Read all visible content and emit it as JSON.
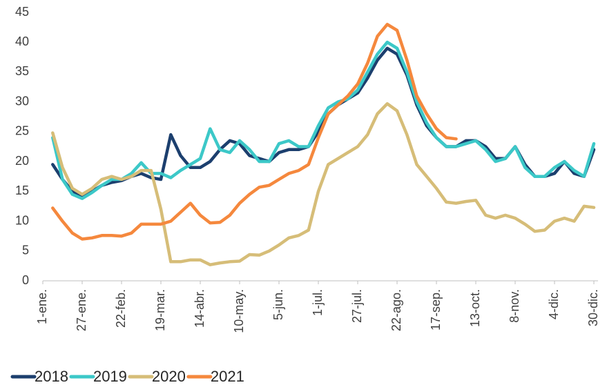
{
  "chart_data": {
    "type": "line",
    "categories": [
      "1-ene.",
      null,
      null,
      null,
      "27-ene.",
      null,
      null,
      null,
      "22-feb.",
      null,
      null,
      null,
      "19-mar.",
      null,
      null,
      null,
      "14-abr.",
      null,
      null,
      null,
      "10-may.",
      null,
      null,
      null,
      "5-jun.",
      null,
      null,
      null,
      "1-jul.",
      null,
      null,
      null,
      "27-jul.",
      null,
      null,
      null,
      "22-ago.",
      null,
      null,
      null,
      "17-sep.",
      null,
      null,
      null,
      "13-oct.",
      null,
      null,
      null,
      "8-nov.",
      null,
      null,
      null,
      "4-dic.",
      null,
      null,
      null,
      "30-dic."
    ],
    "series": [
      {
        "name": "2018",
        "color": "#1c3f6e",
        "values": [
          null,
          19.5,
          17,
          15,
          14.3,
          15,
          16,
          16.5,
          16.8,
          17.5,
          18,
          17.3,
          17,
          24.5,
          21,
          19,
          19,
          20,
          22,
          23.5,
          23,
          21,
          20.5,
          20,
          21.5,
          22,
          22,
          22.5,
          25,
          28,
          29.5,
          30.5,
          31.5,
          34,
          37,
          39,
          38,
          34.5,
          29.5,
          26,
          24,
          22.5,
          22.5,
          23.5,
          23.5,
          22.5,
          20.5,
          20.5,
          22.5,
          19.5,
          17.5,
          17.5,
          18,
          20,
          18,
          17.5,
          22
        ]
      },
      {
        "name": "2019",
        "color": "#3cc8c8",
        "values": [
          null,
          24,
          17,
          14.5,
          13.8,
          14.8,
          16,
          17,
          17,
          18,
          19.8,
          18,
          18,
          17.3,
          18.5,
          19.5,
          20.5,
          25.5,
          22,
          21.5,
          23.5,
          22,
          20,
          20,
          23,
          23.5,
          22.5,
          22.5,
          26,
          29,
          30,
          30.5,
          32,
          35,
          38,
          40,
          39,
          35,
          30,
          26.5,
          24,
          22.5,
          22.5,
          23,
          23.5,
          22,
          20,
          20.5,
          22.5,
          19,
          17.5,
          17.5,
          19,
          20,
          18.5,
          17.5,
          23
        ]
      },
      {
        "name": "2020",
        "color": "#d6bd78",
        "values": [
          null,
          24.8,
          19,
          15.5,
          14.5,
          15.5,
          17,
          17.5,
          17,
          17.5,
          18.5,
          18.5,
          12,
          3.2,
          3.2,
          3.5,
          3.5,
          2.7,
          3,
          3.2,
          3.3,
          4.4,
          4.3,
          5,
          6,
          7.2,
          7.6,
          8.5,
          15,
          19.5,
          20.5,
          21.5,
          22.5,
          24.5,
          28,
          29.7,
          28.5,
          24.5,
          19.5,
          17.5,
          15.5,
          13.2,
          13,
          13.3,
          13.5,
          11,
          10.5,
          11,
          10.5,
          9.5,
          8.3,
          8.5,
          10,
          10.5,
          10,
          12.5,
          12.3
        ]
      },
      {
        "name": "2021",
        "color": "#f5883d",
        "values": [
          null,
          12.2,
          10,
          8,
          7,
          7.2,
          7.6,
          7.6,
          7.5,
          8,
          9.5,
          9.5,
          9.5,
          10,
          11.5,
          13,
          11,
          9.7,
          9.8,
          11,
          13,
          14.5,
          15.7,
          16,
          17,
          18,
          18.5,
          19.5,
          24,
          28,
          29.5,
          31,
          33,
          36.5,
          41,
          43,
          42,
          37,
          31,
          28,
          25.5,
          24,
          23.8,
          null,
          null,
          null,
          null,
          null,
          null,
          null,
          null,
          null,
          null,
          null,
          null,
          null,
          null
        ]
      }
    ],
    "ylim": [
      0,
      45
    ],
    "yticks": [
      0,
      5,
      10,
      15,
      20,
      25,
      30,
      35,
      40,
      45
    ],
    "grid": false,
    "legend": "bottom"
  }
}
